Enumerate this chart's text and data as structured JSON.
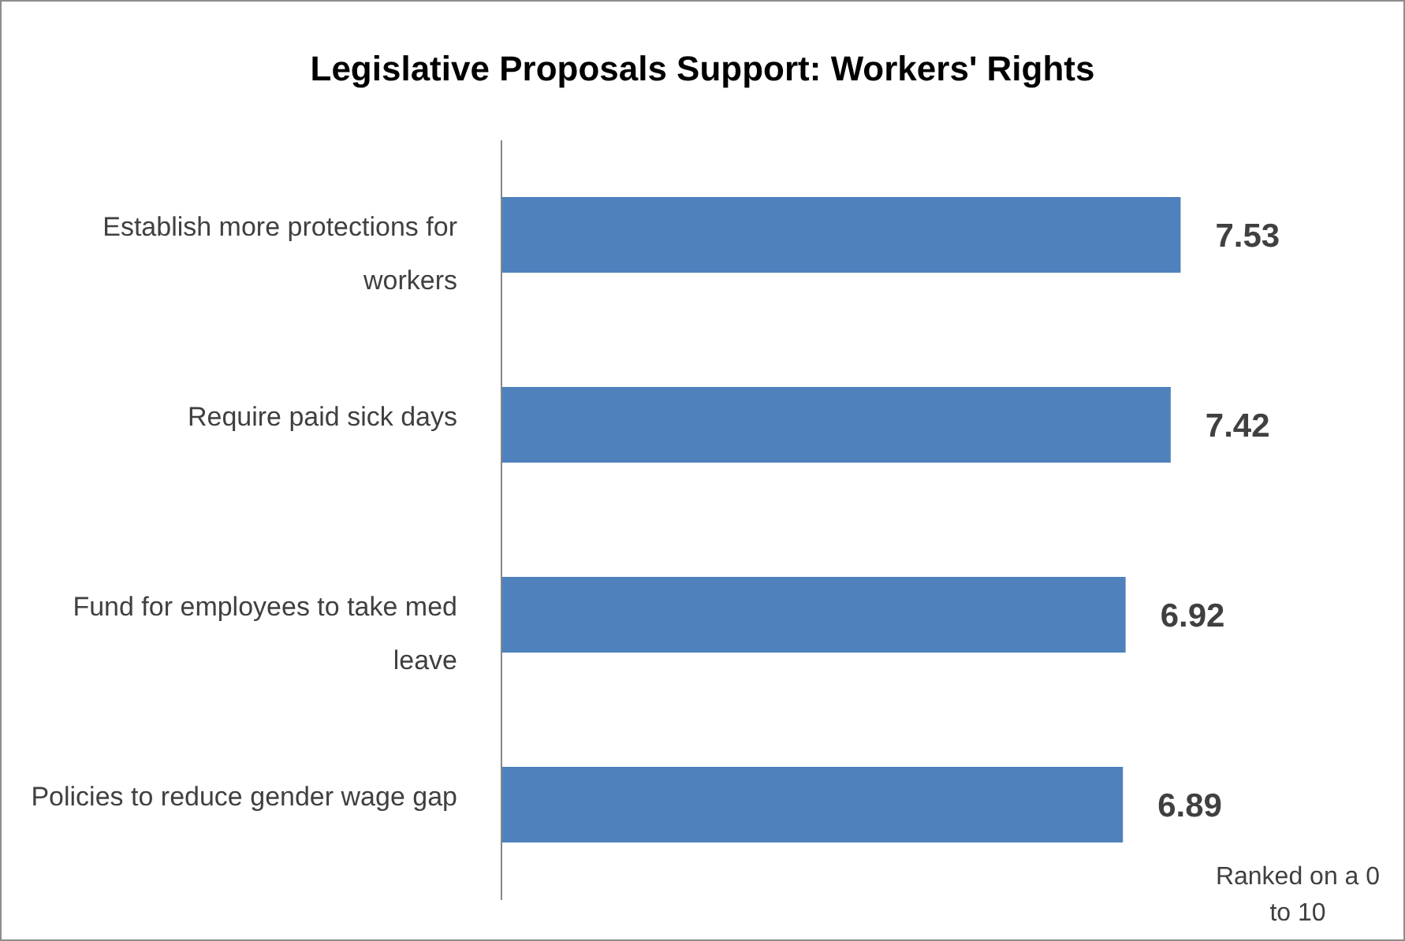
{
  "chart_data": {
    "type": "bar",
    "orientation": "horizontal",
    "title": "Legislative Proposals Support: Workers' Rights",
    "categories": [
      "Establish more protections for workers",
      "Require paid sick days",
      "Fund for employees to take med leave",
      "Policies to reduce gender wage gap"
    ],
    "values": [
      7.53,
      7.42,
      6.92,
      6.89
    ],
    "color": "#4f81bd",
    "data_labels": true,
    "xlim": [
      0,
      10
    ],
    "tick_labels": "y",
    "annotations": [
      "Ranked on a 0 to 10"
    ]
  }
}
